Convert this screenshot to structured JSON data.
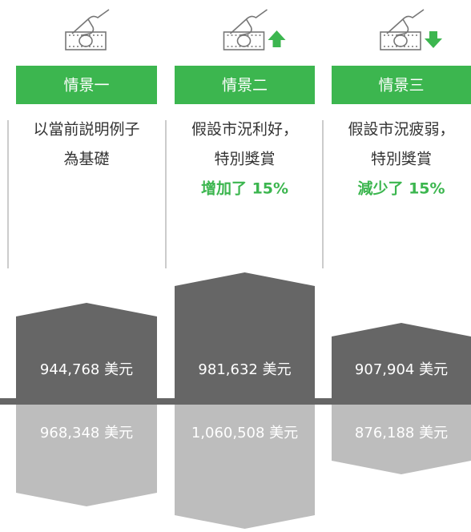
{
  "scenarios": [
    {
      "title": "情景一",
      "description": [
        "以當前説明例子",
        "為基礎"
      ],
      "upper_value": "944,768 美元",
      "lower_value": "968,348 美元"
    },
    {
      "title": "情景二",
      "description": [
        "假設市況利好，",
        "特別獎賞"
      ],
      "highlight": "增加了 15%",
      "upper_value": "981,632 美元",
      "lower_value": "1,060,508 美元"
    },
    {
      "title": "情景三",
      "description": [
        "假設市況疲弱，",
        "特別獎賞"
      ],
      "highlight": "減少了 15%",
      "upper_value": "907,904 美元",
      "lower_value": "876,188 美元"
    }
  ]
}
